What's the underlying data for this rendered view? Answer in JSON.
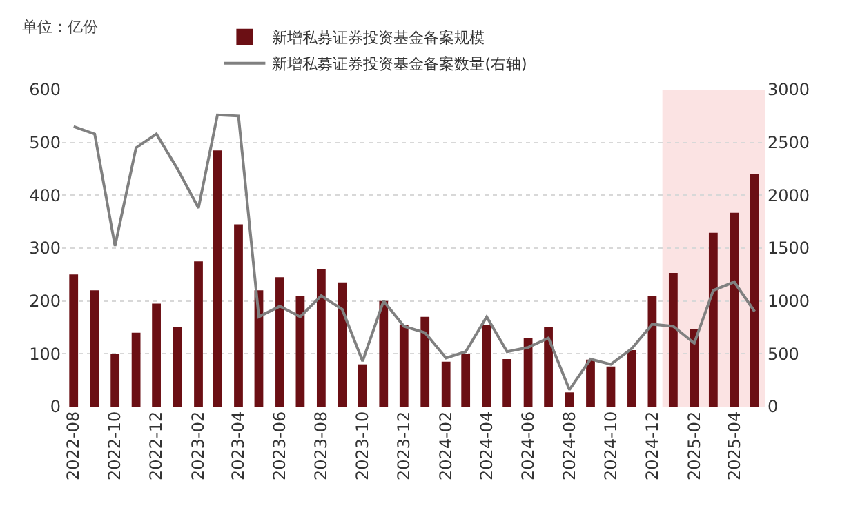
{
  "chart_data": {
    "type": "bar",
    "x": [
      "2022-08",
      "2022-09",
      "2022-10",
      "2022-11",
      "2022-12",
      "2023-01",
      "2023-02",
      "2023-03",
      "2023-04",
      "2023-05",
      "2023-06",
      "2023-07",
      "2023-08",
      "2023-09",
      "2023-10",
      "2023-11",
      "2023-12",
      "2024-01",
      "2024-02",
      "2024-03",
      "2024-04",
      "2024-05",
      "2024-06",
      "2024-07",
      "2024-08",
      "2024-09",
      "2024-10",
      "2024-11",
      "2024-12",
      "2025-01",
      "2025-02",
      "2025-03",
      "2025-04",
      "2025-05"
    ],
    "xlim": [
      "2022-07-15",
      "2025-05-18"
    ],
    "xticks": [
      "2022-08",
      "2022-10",
      "2022-12",
      "2023-02",
      "2023-04",
      "2023-06",
      "2023-08",
      "2023-10",
      "2023-12",
      "2024-02",
      "2024-04",
      "2024-06",
      "2024-08",
      "2024-10",
      "2024-12",
      "2025-02",
      "2025-04"
    ],
    "series": [
      {
        "name": "新增私募证券投资基金备案规模",
        "color": "#6b0f14",
        "values": [
          250,
          220,
          100,
          140,
          195,
          150,
          275,
          485,
          345,
          220,
          245,
          210,
          260,
          235,
          80,
          200,
          155,
          170,
          85,
          100,
          155,
          90,
          130,
          151,
          27,
          89,
          76,
          107,
          209,
          253,
          147,
          329,
          367,
          440
        ]
      },
      {
        "name": "新增私募证券投资基金备案数量(右轴)",
        "type": "line",
        "axis": "y2",
        "color": "#808080",
        "values": [
          2650,
          2580,
          1520,
          2450,
          2580,
          2250,
          1880,
          2760,
          2750,
          850,
          950,
          850,
          1050,
          920,
          430,
          1000,
          760,
          700,
          460,
          520,
          850,
          520,
          560,
          650,
          160,
          450,
          400,
          550,
          780,
          760,
          600,
          1100,
          1180,
          900
        ]
      }
    ],
    "ylim": [
      0,
      600
    ],
    "yticks": [
      0,
      100,
      200,
      300,
      400,
      500,
      600
    ],
    "y2lim": [
      0,
      3000
    ],
    "y2ticks": [
      0,
      500,
      1000,
      1500,
      2000,
      2500,
      3000
    ],
    "bands": [
      {
        "axis": "x",
        "from": "2024-12-16",
        "to": "2025-05-16",
        "color": "#fbe3e3"
      }
    ],
    "annotations": [
      "单位：亿份"
    ],
    "grid": "y",
    "legend": "top",
    "line_style": "solid",
    "marker": "none"
  }
}
